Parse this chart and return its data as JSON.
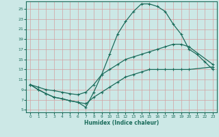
{
  "xlabel": "Humidex (Indice chaleur)",
  "background_color": "#cce8e6",
  "grid_color": "#b0d4d0",
  "line_color": "#1a6b5a",
  "xlim": [
    -0.5,
    23.5
  ],
  "ylim": [
    4.5,
    26.5
  ],
  "xticks": [
    0,
    1,
    2,
    3,
    4,
    5,
    6,
    7,
    8,
    9,
    10,
    11,
    12,
    13,
    14,
    15,
    16,
    17,
    18,
    19,
    20,
    21,
    22,
    23
  ],
  "yticks": [
    5,
    7,
    9,
    11,
    13,
    15,
    17,
    19,
    21,
    23,
    25
  ],
  "line1_x": [
    0,
    1,
    2,
    3,
    4,
    5,
    6,
    7,
    8,
    9,
    10,
    11,
    12,
    13,
    14,
    15,
    16,
    17,
    18,
    19,
    20,
    21,
    22,
    23
  ],
  "line1_y": [
    10,
    9,
    8.2,
    7.5,
    7.2,
    6.8,
    6.5,
    5.5,
    8.5,
    12,
    16,
    20,
    22.5,
    24.5,
    26,
    26,
    25.5,
    24.5,
    22,
    20,
    17,
    16,
    14.5,
    13
  ],
  "line2_x": [
    0,
    1,
    2,
    3,
    4,
    5,
    6,
    7,
    8,
    9,
    10,
    11,
    12,
    13,
    14,
    15,
    16,
    17,
    18,
    19,
    20,
    23
  ],
  "line2_y": [
    10,
    9.5,
    9,
    8.8,
    8.5,
    8.2,
    8,
    8.5,
    10,
    12,
    13,
    14,
    15,
    15.5,
    16,
    16.5,
    17,
    17.5,
    18,
    18,
    17.5,
    14
  ],
  "line3_x": [
    0,
    1,
    2,
    3,
    4,
    5,
    6,
    7,
    8,
    9,
    10,
    11,
    12,
    13,
    14,
    15,
    16,
    17,
    18,
    19,
    20,
    23
  ],
  "line3_y": [
    10,
    9,
    8.2,
    7.5,
    7.2,
    6.8,
    6.5,
    6.2,
    7.5,
    8.5,
    9.5,
    10.5,
    11.5,
    12,
    12.5,
    13,
    13,
    13,
    13,
    13,
    13,
    13.5
  ]
}
